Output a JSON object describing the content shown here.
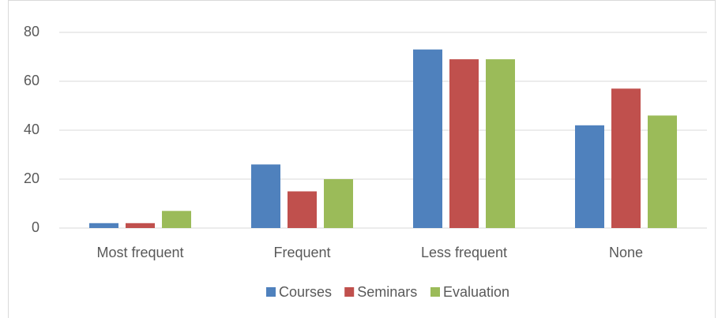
{
  "chart_data": {
    "type": "bar",
    "categories": [
      "Most frequent",
      "Frequent",
      "Less frequent",
      "None"
    ],
    "series": [
      {
        "name": "Courses",
        "color": "#4f81bd",
        "values": [
          2,
          26,
          73,
          42
        ]
      },
      {
        "name": "Seminars",
        "color": "#c0504d",
        "values": [
          2,
          15,
          69,
          57
        ]
      },
      {
        "name": "Evaluation",
        "color": "#9bbb59",
        "values": [
          7,
          20,
          69,
          46
        ]
      }
    ],
    "ylim": [
      0,
      80
    ],
    "yticks": [
      0,
      20,
      40,
      60,
      80
    ],
    "grid": true,
    "legend": "bottom"
  }
}
